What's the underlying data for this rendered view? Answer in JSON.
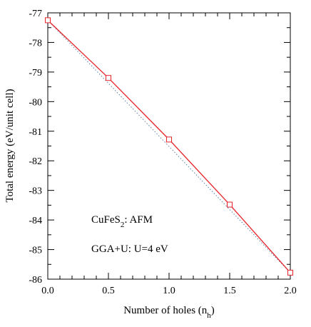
{
  "chart_data": {
    "type": "line",
    "xlabel": "Number of holes (n",
    "xlabel_sub": "h",
    "xlabel_end": ")",
    "ylabel": "Total energy (eV/unit cell)",
    "xlim": [
      0.0,
      2.0
    ],
    "ylim": [
      -86,
      -77
    ],
    "x_ticks": [
      0.0,
      0.5,
      1.0,
      1.5,
      2.0
    ],
    "x_tick_labels": [
      "0.0",
      "0.5",
      "1.0",
      "1.5",
      "2.0"
    ],
    "y_ticks": [
      -77,
      -78,
      -79,
      -80,
      -81,
      -82,
      -83,
      -84,
      -85,
      -86
    ],
    "y_tick_labels": [
      "-77",
      "-78",
      "-79",
      "-80",
      "-81",
      "-82",
      "-83",
      "-84",
      "-85",
      "-86"
    ],
    "series": [
      {
        "style": "solid",
        "color": "#e8242a",
        "marker": "square",
        "x": [
          0.0,
          0.5,
          1.0,
          1.5,
          2.0
        ],
        "y": [
          -77.25,
          -79.2,
          -81.28,
          -83.48,
          -85.78
        ]
      },
      {
        "style": "dotted",
        "color": "#5a7fa8",
        "marker": "none",
        "x": [
          0.0,
          2.0
        ],
        "y": [
          -77.25,
          -85.78
        ]
      }
    ],
    "annotations": [
      {
        "text": "CuFeS",
        "sub": "2",
        "suffix": ": AFM"
      },
      {
        "text": "GGA+U:  U=4 eV"
      }
    ],
    "grid": false
  }
}
